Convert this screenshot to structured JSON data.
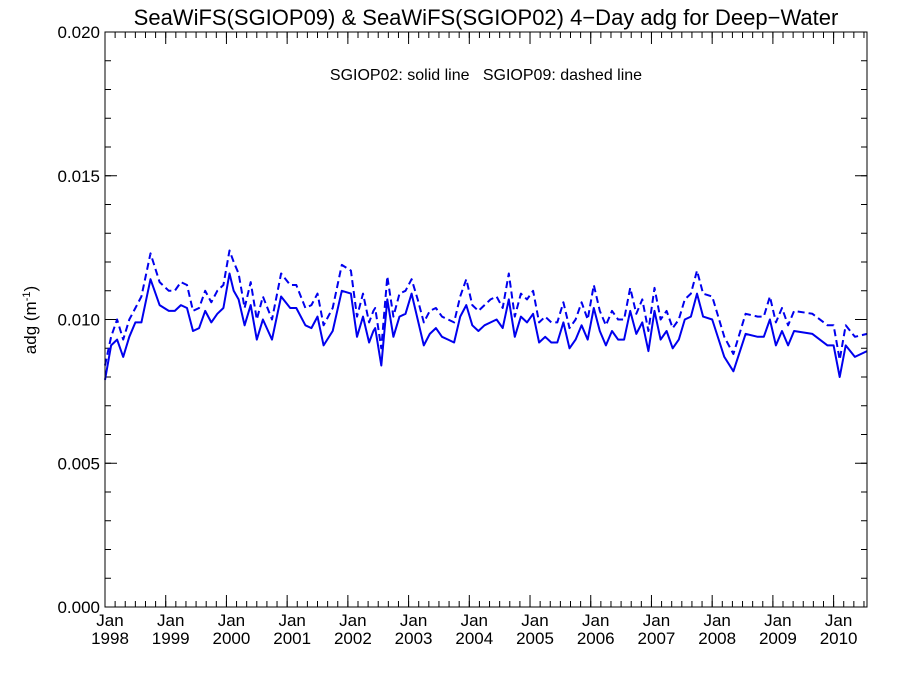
{
  "chart_data": {
    "type": "line",
    "title": "SeaWiFS(SGIOP09) & SeaWiFS(SGIOP02) 4−Day adg for Deep−Water",
    "annotation": "SGIOP02: solid line   SGIOP09: dashed line",
    "ylabel": "adg (m",
    "ylabel_unit_exponent": "-1",
    "ylabel_suffix": ")",
    "ylim": [
      0.0,
      0.02
    ],
    "xlim": [
      1998.0,
      2010.55
    ],
    "yticks": [
      "0.000",
      "0.005",
      "0.010",
      "0.015",
      "0.020"
    ],
    "xticks": [
      {
        "month": "Jan",
        "year": "1998"
      },
      {
        "month": "Jan",
        "year": "1999"
      },
      {
        "month": "Jan",
        "year": "2000"
      },
      {
        "month": "Jan",
        "year": "2001"
      },
      {
        "month": "Jan",
        "year": "2002"
      },
      {
        "month": "Jan",
        "year": "2003"
      },
      {
        "month": "Jan",
        "year": "2004"
      },
      {
        "month": "Jan",
        "year": "2005"
      },
      {
        "month": "Jan",
        "year": "2006"
      },
      {
        "month": "Jan",
        "year": "2007"
      },
      {
        "month": "Jan",
        "year": "2008"
      },
      {
        "month": "Jan",
        "year": "2009"
      },
      {
        "month": "Jan",
        "year": "2010"
      }
    ],
    "color": "#0000ee",
    "series": [
      {
        "style": "solid",
        "x": [
          1998.0,
          1998.1,
          1998.2,
          1998.3,
          1998.4,
          1998.5,
          1998.6,
          1998.75,
          1998.9,
          1999.05,
          1999.15,
          1999.25,
          1999.35,
          1999.45,
          1999.55,
          1999.65,
          1999.75,
          1999.85,
          1999.95,
          2000.05,
          2000.12,
          2000.2,
          2000.3,
          2000.4,
          2000.5,
          2000.6,
          2000.75,
          2000.9,
          2001.05,
          2001.15,
          2001.3,
          2001.4,
          2001.5,
          2001.6,
          2001.75,
          2001.9,
          2002.05,
          2002.15,
          2002.25,
          2002.35,
          2002.42,
          2002.45,
          2002.55,
          2002.65,
          2002.75,
          2002.85,
          2002.95,
          2003.05,
          2003.15,
          2003.25,
          2003.35,
          2003.45,
          2003.55,
          2003.65,
          2003.75,
          2003.85,
          2003.95,
          2004.05,
          2004.15,
          2004.25,
          2004.35,
          2004.45,
          2004.55,
          2004.65,
          2004.75,
          2004.85,
          2004.95,
          2005.05,
          2005.15,
          2005.25,
          2005.35,
          2005.45,
          2005.55,
          2005.65,
          2005.75,
          2005.85,
          2005.95,
          2006.05,
          2006.15,
          2006.25,
          2006.35,
          2006.45,
          2006.55,
          2006.65,
          2006.75,
          2006.85,
          2006.95,
          2007.05,
          2007.15,
          2007.25,
          2007.35,
          2007.45,
          2007.55,
          2007.65,
          2007.75,
          2007.85,
          2008.0,
          2008.2,
          2008.35,
          2008.55,
          2008.75,
          2008.85,
          2008.95,
          2009.05,
          2009.15,
          2009.25,
          2009.35,
          2009.65,
          2009.9,
          2010.0,
          2010.1,
          2010.2,
          2010.35,
          2010.55
        ],
        "y": [
          0.0079,
          0.0091,
          0.0093,
          0.0087,
          0.0094,
          0.0099,
          0.0099,
          0.0114,
          0.0105,
          0.0103,
          0.0103,
          0.0105,
          0.0104,
          0.0096,
          0.0097,
          0.0103,
          0.0099,
          0.0102,
          0.0104,
          0.0116,
          0.011,
          0.0107,
          0.0098,
          0.0105,
          0.0093,
          0.01,
          0.0093,
          0.0108,
          0.0104,
          0.0104,
          0.0098,
          0.0097,
          0.0101,
          0.0091,
          0.0096,
          0.011,
          0.0109,
          0.0094,
          0.0101,
          0.0092,
          0.0096,
          0.0097,
          0.0084,
          0.0107,
          0.0094,
          0.0101,
          0.0102,
          0.0109,
          0.01,
          0.0091,
          0.0095,
          0.0097,
          0.0094,
          0.0093,
          0.0092,
          0.0101,
          0.0105,
          0.0098,
          0.0096,
          0.0098,
          0.0099,
          0.01,
          0.0097,
          0.0107,
          0.0094,
          0.0101,
          0.0099,
          0.0102,
          0.0092,
          0.0094,
          0.0092,
          0.0092,
          0.0099,
          0.009,
          0.0093,
          0.0098,
          0.0093,
          0.0104,
          0.0096,
          0.0091,
          0.0096,
          0.0093,
          0.0093,
          0.0103,
          0.0095,
          0.0099,
          0.0089,
          0.0103,
          0.0093,
          0.0096,
          0.009,
          0.0093,
          0.01,
          0.0101,
          0.0109,
          0.0101,
          0.01,
          0.0087,
          0.0082,
          0.0095,
          0.0094,
          0.0094,
          0.01,
          0.0091,
          0.0096,
          0.0091,
          0.0096,
          0.0095,
          0.0091,
          0.0091,
          0.008,
          0.0091,
          0.0087,
          0.0089
        ]
      },
      {
        "style": "dashed",
        "x": [
          1998.0,
          1998.1,
          1998.2,
          1998.3,
          1998.4,
          1998.5,
          1998.6,
          1998.75,
          1998.9,
          1999.05,
          1999.15,
          1999.25,
          1999.35,
          1999.45,
          1999.55,
          1999.65,
          1999.75,
          1999.85,
          1999.95,
          2000.05,
          2000.12,
          2000.2,
          2000.3,
          2000.4,
          2000.5,
          2000.6,
          2000.75,
          2000.9,
          2001.05,
          2001.15,
          2001.3,
          2001.4,
          2001.5,
          2001.6,
          2001.75,
          2001.9,
          2002.05,
          2002.15,
          2002.25,
          2002.35,
          2002.42,
          2002.45,
          2002.55,
          2002.65,
          2002.75,
          2002.85,
          2002.95,
          2003.05,
          2003.15,
          2003.25,
          2003.35,
          2003.45,
          2003.55,
          2003.65,
          2003.75,
          2003.85,
          2003.95,
          2004.05,
          2004.15,
          2004.25,
          2004.35,
          2004.45,
          2004.55,
          2004.65,
          2004.75,
          2004.85,
          2004.95,
          2005.05,
          2005.15,
          2005.25,
          2005.35,
          2005.45,
          2005.55,
          2005.65,
          2005.75,
          2005.85,
          2005.95,
          2006.05,
          2006.15,
          2006.25,
          2006.35,
          2006.45,
          2006.55,
          2006.65,
          2006.75,
          2006.85,
          2006.95,
          2007.05,
          2007.15,
          2007.25,
          2007.35,
          2007.45,
          2007.55,
          2007.65,
          2007.75,
          2007.85,
          2008.0,
          2008.2,
          2008.35,
          2008.55,
          2008.75,
          2008.85,
          2008.95,
          2009.05,
          2009.15,
          2009.25,
          2009.35,
          2009.65,
          2009.9,
          2010.0,
          2010.1,
          2010.2,
          2010.35,
          2010.55
        ],
        "y": [
          0.0084,
          0.0094,
          0.01,
          0.0093,
          0.01,
          0.0104,
          0.0108,
          0.0123,
          0.0113,
          0.011,
          0.011,
          0.0113,
          0.0112,
          0.0103,
          0.0104,
          0.011,
          0.0106,
          0.011,
          0.0112,
          0.0124,
          0.012,
          0.0116,
          0.0104,
          0.0113,
          0.01,
          0.0108,
          0.01,
          0.0116,
          0.0112,
          0.0112,
          0.0104,
          0.0105,
          0.0109,
          0.0098,
          0.0104,
          0.0119,
          0.0117,
          0.0101,
          0.0109,
          0.0099,
          0.0103,
          0.0104,
          0.009,
          0.0115,
          0.0101,
          0.0109,
          0.011,
          0.0114,
          0.0107,
          0.0099,
          0.0103,
          0.0104,
          0.0101,
          0.01,
          0.0099,
          0.0108,
          0.0114,
          0.0105,
          0.0103,
          0.0105,
          0.0107,
          0.0108,
          0.0104,
          0.0116,
          0.0101,
          0.0109,
          0.0107,
          0.011,
          0.0099,
          0.0101,
          0.0099,
          0.0099,
          0.0106,
          0.0097,
          0.01,
          0.0106,
          0.01,
          0.0112,
          0.0103,
          0.0098,
          0.0103,
          0.01,
          0.01,
          0.0111,
          0.0102,
          0.0107,
          0.0096,
          0.0111,
          0.01,
          0.0103,
          0.0097,
          0.01,
          0.0107,
          0.0109,
          0.0117,
          0.0109,
          0.0108,
          0.0094,
          0.0088,
          0.0102,
          0.0101,
          0.0101,
          0.0108,
          0.0099,
          0.0104,
          0.0098,
          0.0103,
          0.0102,
          0.0098,
          0.0098,
          0.0086,
          0.0098,
          0.0094,
          0.0095
        ]
      }
    ]
  }
}
